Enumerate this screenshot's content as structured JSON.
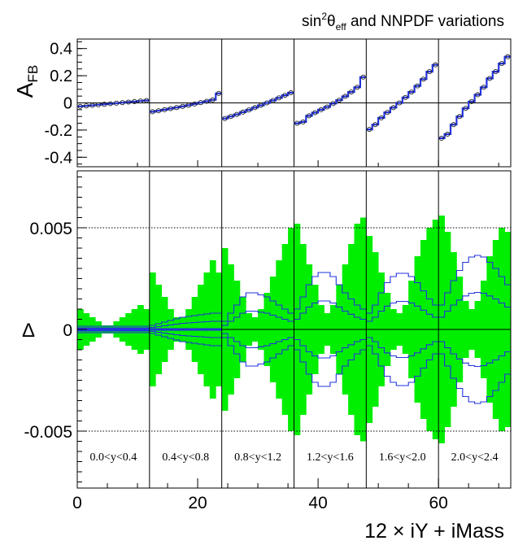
{
  "chart_data": [
    {
      "panel": "top",
      "type": "line",
      "title": "sin²θeff and NNPDF variations",
      "title_parts": {
        "base": "sin",
        "sup": "2",
        "theta": "θ",
        "sub": "eff",
        "rest": " and NNPDF variations"
      },
      "ylabel_parts": {
        "base": "A",
        "sub": "FB"
      },
      "ylim": [
        -0.47,
        0.47
      ],
      "xlim": [
        0,
        72
      ],
      "yticks": [
        0.4,
        0.2,
        0,
        -0.2,
        -0.4
      ],
      "ytick_labels": [
        "0.4",
        "0.2",
        "0",
        "-0.2",
        "-0.4"
      ],
      "zero_line": true,
      "divider_x": [
        12,
        24,
        36,
        48,
        60
      ],
      "series": [
        {
          "values": [
            -0.026,
            -0.022,
            -0.018,
            -0.014,
            -0.01,
            -0.006,
            -0.002,
            0.002,
            0.006,
            0.01,
            0.014,
            0.018,
            -0.065,
            -0.058,
            -0.05,
            -0.042,
            -0.034,
            -0.026,
            -0.017,
            -0.008,
            0.002,
            0.012,
            0.023,
            0.07,
            -0.115,
            -0.1,
            -0.085,
            -0.068,
            -0.052,
            -0.035,
            -0.018,
            0.0,
            0.018,
            0.037,
            0.056,
            0.075,
            -0.15,
            -0.14,
            -0.095,
            -0.072,
            -0.05,
            -0.03,
            -0.005,
            0.02,
            0.048,
            0.08,
            0.115,
            0.19,
            -0.195,
            -0.16,
            -0.11,
            -0.07,
            -0.035,
            0.0,
            0.04,
            0.08,
            0.125,
            0.175,
            0.23,
            0.28,
            -0.26,
            -0.23,
            -0.16,
            -0.1,
            -0.04,
            0.01,
            0.06,
            0.115,
            0.18,
            0.23,
            0.29,
            0.34
          ]
        }
      ]
    },
    {
      "panel": "bottom",
      "type": "area",
      "xlabel": "12 × iY + iMass",
      "ylabel": "Δ",
      "ylim": [
        -0.0078,
        0.0078
      ],
      "xlim": [
        0,
        72
      ],
      "xticks": [
        0,
        20,
        40,
        60
      ],
      "xtick_labels": [
        "0",
        "20",
        "40",
        "60"
      ],
      "yticks": [
        0.005,
        0,
        -0.005
      ],
      "ytick_labels": [
        "0.005",
        "0",
        "-0.005"
      ],
      "dotted_lines_y": [
        0.005,
        -0.005
      ],
      "zero_line": true,
      "divider_x": [
        12,
        24,
        36,
        48,
        60
      ],
      "region_labels": [
        "0.0<y<0.4",
        "0.4<y<0.8",
        "0.8<y<1.2",
        "1.2<y<1.6",
        "1.6<y<2.0",
        "2.0<y<2.4"
      ],
      "band_color": "#00ee00",
      "line_color": "#2233dd",
      "band_halfwidth": [
        0.001,
        0.0008,
        0.0006,
        0.0004,
        0.0002,
        0.0002,
        0.0004,
        0.0006,
        0.0008,
        0.001,
        0.0012,
        0.001,
        0.0028,
        0.0022,
        0.0016,
        0.001,
        0.0006,
        0.0006,
        0.001,
        0.0016,
        0.0022,
        0.0028,
        0.0034,
        0.0028,
        0.004,
        0.0032,
        0.0024,
        0.0016,
        0.0008,
        0.0006,
        0.001,
        0.0018,
        0.0026,
        0.0034,
        0.0042,
        0.005,
        0.0052,
        0.0042,
        0.0032,
        0.0022,
        0.0012,
        0.0008,
        0.0012,
        0.0022,
        0.0032,
        0.0042,
        0.0052,
        0.0055,
        0.0046,
        0.0038,
        0.0028,
        0.0018,
        0.001,
        0.0008,
        0.0012,
        0.0024,
        0.0036,
        0.0044,
        0.005,
        0.0054,
        0.0056,
        0.0048,
        0.0038,
        0.0026,
        0.0014,
        0.001,
        0.0014,
        0.0024,
        0.0036,
        0.0044,
        0.005,
        0.0048
      ],
      "variation_scale": [
        8e-05,
        8e-05,
        8e-05,
        8e-05,
        8e-05,
        8e-05,
        8e-05,
        8e-05,
        8e-05,
        8e-05,
        8e-05,
        8e-05,
        0.0001,
        0.00014,
        0.00018,
        0.00022,
        0.00026,
        0.0003,
        0.00032,
        0.00034,
        0.00036,
        0.00038,
        0.0004,
        0.0004,
        0.0002,
        0.0004,
        0.0006,
        0.0008,
        0.0009,
        0.0009,
        0.00085,
        0.0008,
        0.0007,
        0.0006,
        0.0005,
        0.0004,
        0.0005,
        0.0008,
        0.0011,
        0.0013,
        0.0014,
        0.0014,
        0.0013,
        0.0011,
        0.0009,
        0.00075,
        0.0006,
        0.0005,
        0.0004,
        0.0006,
        0.0009,
        0.00115,
        0.0013,
        0.00138,
        0.00138,
        0.0013,
        0.00115,
        0.00095,
        0.00075,
        0.0006,
        0.0006,
        0.0009,
        0.0012,
        0.00145,
        0.00165,
        0.00178,
        0.00182,
        0.00178,
        0.00165,
        0.0015,
        0.0013,
        0.0011
      ],
      "variation_multipliers": [
        -2,
        -1,
        1,
        2
      ]
    }
  ]
}
